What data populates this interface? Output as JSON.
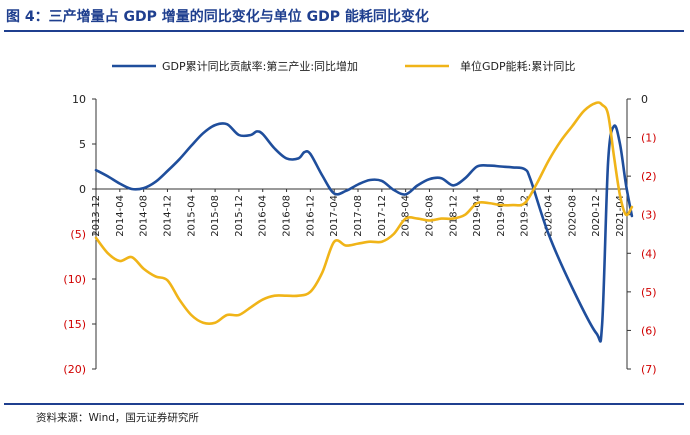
{
  "figure": {
    "title": "图 4：三产增量占 GDP 增量的同比变化与单位 GDP 能耗同比变化",
    "source": "资料来源：Wind，国元证券研究所"
  },
  "chart_data": {
    "type": "line",
    "legend_position": "top",
    "grid": false,
    "x_ticks": [
      "2013-12",
      "2014-04",
      "2014-08",
      "2014-12",
      "2015-04",
      "2015-08",
      "2015-12",
      "2016-04",
      "2016-08",
      "2016-12",
      "2017-04",
      "2017-08",
      "2017-12",
      "2018-04",
      "2018-08",
      "2018-12",
      "2019-04",
      "2019-08",
      "2019-12",
      "2020-04",
      "2020-08",
      "2020-12",
      "2021-04"
    ],
    "y_left": {
      "range": [
        -20,
        10
      ],
      "ticks": [
        10,
        5,
        0,
        -5,
        -10,
        -15,
        -20
      ],
      "tick_labels": [
        "10",
        "5",
        "0",
        "(5)",
        "(10)",
        "(15)",
        "(20)"
      ]
    },
    "y_right": {
      "range": [
        -7,
        0
      ],
      "ticks": [
        0,
        -1,
        -2,
        -3,
        -4,
        -5,
        -6,
        -7
      ],
      "tick_labels": [
        "0",
        "(1)",
        "(2)",
        "(3)",
        "(4)",
        "(5)",
        "(6)",
        "(7)"
      ]
    },
    "series": [
      {
        "name": "GDP累计同比贡献率:第三产业:同比增加",
        "axis": "left",
        "color": "#1f4e9c",
        "points": [
          [
            "2013-12",
            2.1
          ],
          [
            "2014-02",
            1.4
          ],
          [
            "2014-04",
            0.6
          ],
          [
            "2014-06",
            0.0
          ],
          [
            "2014-08",
            0.1
          ],
          [
            "2014-10",
            0.8
          ],
          [
            "2014-12",
            2.0
          ],
          [
            "2015-02",
            3.3
          ],
          [
            "2015-04",
            4.8
          ],
          [
            "2015-06",
            6.2
          ],
          [
            "2015-08",
            7.1
          ],
          [
            "2015-10",
            7.2
          ],
          [
            "2015-12",
            6.0
          ],
          [
            "2016-02",
            6.0
          ],
          [
            "2016-03",
            6.4
          ],
          [
            "2016-04",
            6.1
          ],
          [
            "2016-06",
            4.5
          ],
          [
            "2016-08",
            3.4
          ],
          [
            "2016-10",
            3.4
          ],
          [
            "2016-11",
            4.1
          ],
          [
            "2016-12",
            3.9
          ],
          [
            "2017-02",
            1.5
          ],
          [
            "2017-04",
            -0.5
          ],
          [
            "2017-06",
            -0.2
          ],
          [
            "2017-08",
            0.5
          ],
          [
            "2017-10",
            1.0
          ],
          [
            "2017-12",
            0.9
          ],
          [
            "2018-02",
            -0.1
          ],
          [
            "2018-04",
            -0.6
          ],
          [
            "2018-06",
            0.4
          ],
          [
            "2018-08",
            1.1
          ],
          [
            "2018-10",
            1.2
          ],
          [
            "2018-12",
            0.4
          ],
          [
            "2019-02",
            1.2
          ],
          [
            "2019-04",
            2.5
          ],
          [
            "2019-06",
            2.6
          ],
          [
            "2019-08",
            2.5
          ],
          [
            "2019-10",
            2.4
          ],
          [
            "2019-12",
            2.2
          ],
          [
            "2020-01",
            1.0
          ],
          [
            "2020-04",
            -5.0
          ],
          [
            "2020-08",
            -11.0
          ],
          [
            "2020-12",
            -16.0
          ],
          [
            "2021-01",
            -15.0
          ],
          [
            "2021-02",
            3.0
          ],
          [
            "2021-03",
            7.0
          ],
          [
            "2021-04",
            5.0
          ],
          [
            "2021-05",
            0.5
          ],
          [
            "2021-06",
            -3.0
          ]
        ]
      },
      {
        "name": "单位GDP能耗:累计同比",
        "axis": "right",
        "color": "#f0b418",
        "points": [
          [
            "2013-12",
            -3.6
          ],
          [
            "2014-02",
            -4.0
          ],
          [
            "2014-04",
            -4.2
          ],
          [
            "2014-06",
            -4.1
          ],
          [
            "2014-08",
            -4.4
          ],
          [
            "2014-10",
            -4.6
          ],
          [
            "2014-12",
            -4.7
          ],
          [
            "2015-02",
            -5.2
          ],
          [
            "2015-04",
            -5.6
          ],
          [
            "2015-06",
            -5.8
          ],
          [
            "2015-08",
            -5.8
          ],
          [
            "2015-10",
            -5.6
          ],
          [
            "2015-12",
            -5.6
          ],
          [
            "2016-02",
            -5.4
          ],
          [
            "2016-04",
            -5.2
          ],
          [
            "2016-06",
            -5.1
          ],
          [
            "2016-08",
            -5.1
          ],
          [
            "2016-10",
            -5.1
          ],
          [
            "2016-12",
            -5.0
          ],
          [
            "2017-02",
            -4.5
          ],
          [
            "2017-04",
            -3.7
          ],
          [
            "2017-06",
            -3.8
          ],
          [
            "2017-08",
            -3.75
          ],
          [
            "2017-10",
            -3.7
          ],
          [
            "2017-12",
            -3.7
          ],
          [
            "2018-02",
            -3.5
          ],
          [
            "2018-04",
            -3.1
          ],
          [
            "2018-06",
            -3.1
          ],
          [
            "2018-08",
            -3.15
          ],
          [
            "2018-10",
            -3.1
          ],
          [
            "2018-12",
            -3.1
          ],
          [
            "2019-02",
            -3.0
          ],
          [
            "2019-04",
            -2.7
          ],
          [
            "2019-06",
            -2.7
          ],
          [
            "2019-08",
            -2.75
          ],
          [
            "2019-10",
            -2.75
          ],
          [
            "2019-12",
            -2.7
          ],
          [
            "2020-02",
            -2.2
          ],
          [
            "2020-04",
            -1.6
          ],
          [
            "2020-06",
            -1.1
          ],
          [
            "2020-08",
            -0.7
          ],
          [
            "2020-10",
            -0.3
          ],
          [
            "2020-12",
            -0.1
          ],
          [
            "2021-01",
            -0.15
          ],
          [
            "2021-02",
            -0.4
          ],
          [
            "2021-03",
            -1.5
          ],
          [
            "2021-04",
            -2.5
          ],
          [
            "2021-05",
            -3.0
          ],
          [
            "2021-06",
            -2.8
          ]
        ]
      }
    ]
  }
}
